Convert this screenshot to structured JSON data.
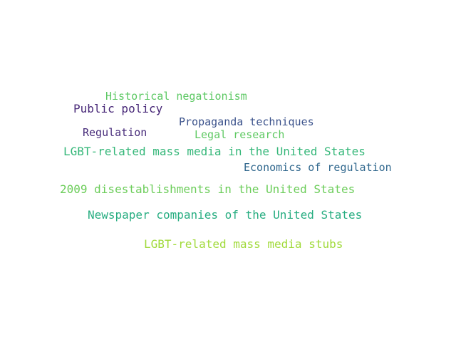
{
  "word_cloud": {
    "words": [
      {
        "text": "Historical negationism",
        "color": "#5cc863"
      },
      {
        "text": "Public policy",
        "color": "#482878"
      },
      {
        "text": "Propaganda techniques",
        "color": "#3b528b"
      },
      {
        "text": "Regulation",
        "color": "#472c7a"
      },
      {
        "text": "Legal research",
        "color": "#5ec962"
      },
      {
        "text": "LGBT-related mass media in the United States",
        "color": "#35b779"
      },
      {
        "text": "Economics of regulation",
        "color": "#31688e"
      },
      {
        "text": "2009 disestablishments in the United States",
        "color": "#6ccd5a"
      },
      {
        "text": "Newspaper companies of the United States",
        "color": "#27ad81"
      },
      {
        "text": "LGBT-related mass media stubs",
        "color": "#a0da39"
      }
    ]
  }
}
